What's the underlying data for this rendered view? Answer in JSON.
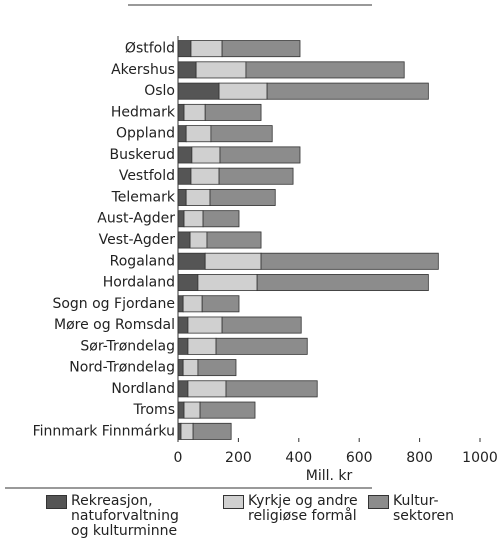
{
  "chart_data": {
    "type": "stacked-barh",
    "categories": [
      "Østfold",
      "Akershus",
      "Oslo",
      "Hedmark",
      "Oppland",
      "Buskerud",
      "Vestfold",
      "Telemark",
      "Aust-Agder",
      "Vest-Agder",
      "Rogaland",
      "Hordaland",
      "Sogn og Fjordane",
      "Møre og Romsdal",
      "Sør-Trøndelag",
      "Nord-Trøndelag",
      "Nordland",
      "Troms",
      "Finnmark Finnmárku"
    ],
    "series": [
      {
        "name": "Rekreasjon, natuforvaltning og kulturminne",
        "color": "#555555",
        "values": [
          43,
          60,
          136,
          20,
          27,
          46,
          43,
          27,
          20,
          40,
          90,
          66,
          17,
          33,
          33,
          17,
          33,
          20,
          10
        ]
      },
      {
        "name": "Kyrkje og andre religiøse formål",
        "color": "#d0d0d0",
        "values": [
          103,
          165,
          159,
          70,
          82,
          93,
          93,
          79,
          63,
          56,
          185,
          196,
          63,
          113,
          93,
          49,
          126,
          53,
          40
        ]
      },
      {
        "name": "Kultur-sektoren",
        "color": "#8c8c8c",
        "values": [
          258,
          524,
          534,
          185,
          203,
          265,
          245,
          216,
          119,
          179,
          587,
          567,
          122,
          262,
          302,
          126,
          302,
          182,
          126
        ]
      }
    ],
    "xlabel": "Mill. kr",
    "xlim": [
      0,
      1000
    ],
    "xticks": [
      0,
      200,
      400,
      600,
      800,
      1000
    ]
  }
}
